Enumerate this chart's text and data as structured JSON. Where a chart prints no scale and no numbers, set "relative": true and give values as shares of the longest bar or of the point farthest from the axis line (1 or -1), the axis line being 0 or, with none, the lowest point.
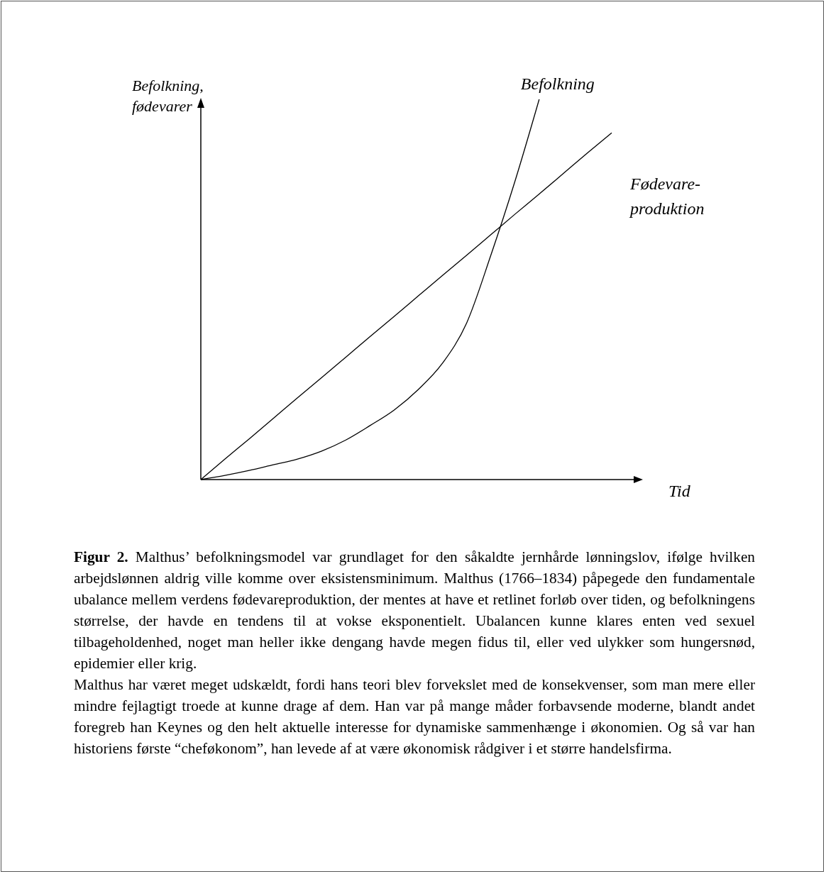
{
  "chart_data": {
    "type": "line",
    "relative": true,
    "ylabel": "Befolkning, fødevarer",
    "xlabel": "Tid",
    "categories": [
      null,
      null,
      null,
      null,
      null,
      null,
      null,
      null,
      null,
      null,
      null,
      null,
      null,
      null,
      null,
      null,
      null,
      null
    ],
    "series": [
      {
        "name": "Befolkning",
        "color": "#000000",
        "values": [
          0,
          0.011,
          0.024,
          0.039,
          0.054,
          0.075,
          0.104,
          0.142,
          0.183,
          0.237,
          0.306,
          0.412,
          0.59,
          0.785,
          1,
          null,
          null,
          null
        ]
      },
      {
        "name": "Fødevare-produktion",
        "color": "#000000",
        "values": [
          0,
          0.054,
          0.107,
          0.161,
          0.215,
          0.268,
          0.322,
          0.376,
          0.429,
          0.483,
          0.537,
          0.59,
          0.644,
          0.698,
          0.751,
          0.805,
          0.859,
          0.912
        ]
      }
    ],
    "marker": "none",
    "line_style": "solid",
    "annotations": [
      "Figur 2. Malthus’ befolkningsmodel var grundlaget for den såkaldte jernhårde lønningslov, ifølge hvilken arbejdslønnen aldrig ville komme over eksistensminimum. Malthus (1766–1834) påpegede den fundamentale ubalance mellem verdens fødevareproduktion, der mentes at have et retlinet forløb over tiden, og befolkningens størrelse, der havde en tendens til at vokse eksponentielt. Ubalancen kunne klares enten ved sexuel tilbageholdenhed, noget man heller ikke dengang havde megen fidus til, eller ved ulykker som hungersnød, epidemier eller krig.",
      "Malthus har været meget udskældt, fordi hans teori blev forvekslet med de konsekvenser, som man mere eller mindre fejlagtigt troede at kunne drage af dem. Han var på mange måder forbavsende moderne, blandt andet foregreb han Keynes og den helt aktuelle interesse for dynamiske sammenhænge i økonomien. Og så var han historiens første “cheføkonom”, han levede af at være økonomisk rådgiver i et større handelsfirma."
    ]
  }
}
